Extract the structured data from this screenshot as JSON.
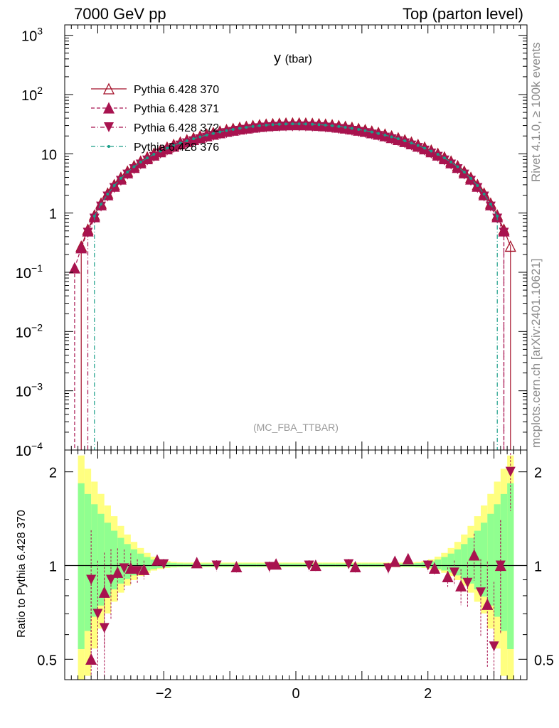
{
  "header": {
    "left": "7000 GeV pp",
    "right": "Top (parton level)"
  },
  "side_labels": {
    "rivet": "Rivet 4.1.0, ≥ 100k events",
    "mcplots": "mcplots.cern.ch [arXiv:2401.10621]"
  },
  "colors": {
    "s370": "#a5122a",
    "s371": "#a8134f",
    "s372": "#a8134f",
    "s376": "#1a9e88",
    "band_yellow": "#ffff80",
    "band_green": "#90ff90"
  },
  "chart_data": [
    {
      "type": "line",
      "panel": "main",
      "title": "y",
      "title_suffix": "(tbar)",
      "watermark": "(MC_FBA_TTBAR)",
      "xlabel": "",
      "ylabel": "",
      "xlim": [
        -3.5,
        3.5
      ],
      "ylim": [
        0.0001,
        1500
      ],
      "yscale": "log",
      "ytick_labels": [
        {
          "base": "10",
          "exp": "−4",
          "value": 0.0001
        },
        {
          "base": "10",
          "exp": "−3",
          "value": 0.001
        },
        {
          "base": "10",
          "exp": "−2",
          "value": 0.01
        },
        {
          "base": "10",
          "exp": "−1",
          "value": 0.1
        },
        {
          "base": "1",
          "exp": "",
          "value": 1
        },
        {
          "base": "10",
          "exp": "",
          "value": 10
        },
        {
          "base": "10",
          "exp": "2",
          "value": 100
        },
        {
          "base": "10",
          "exp": "3",
          "value": 1000
        }
      ],
      "legend_position": "top-left",
      "series": [
        {
          "name": "Pythia 6.428 370",
          "key": "s370",
          "marker": "open-triangle-up",
          "linestyle": "solid",
          "x_first": -3.25,
          "x_last": 3.25,
          "peak": 33
        },
        {
          "name": "Pythia 6.428 371",
          "key": "s371",
          "marker": "triangle-up",
          "linestyle": "dashed",
          "x_first": -3.35,
          "x_last": 3.15,
          "peak": 31
        },
        {
          "name": "Pythia 6.428 372",
          "key": "s372",
          "marker": "triangle-down",
          "linestyle": "dashdot",
          "x_first": -3.15,
          "x_last": 3.15,
          "peak": 29
        },
        {
          "name": "Pythia 6.428 376",
          "key": "s376",
          "marker": "dot",
          "linestyle": "dashdot",
          "x_first": -3.05,
          "x_last": 3.05,
          "peak": 32
        }
      ]
    },
    {
      "type": "line",
      "panel": "ratio",
      "ylabel": "Ratio to Pythia 6.428 370",
      "xlim": [
        -3.5,
        3.5
      ],
      "ylim": [
        0.43,
        2.35
      ],
      "yscale": "log",
      "xtick_labels": [
        {
          "label": "−2",
          "value": -2
        },
        {
          "label": "0",
          "value": 0
        },
        {
          "label": "2",
          "value": 2
        }
      ],
      "ytick_labels": [
        {
          "label": "0.5",
          "value": 0.5
        },
        {
          "label": "1",
          "value": 1
        },
        {
          "label": "2",
          "value": 2
        }
      ],
      "reference": 1,
      "series_ratio": [
        {
          "key": "s371",
          "x": [
            -3.1,
            -2.9,
            -2.7,
            -2.5,
            -2.3,
            -2.1,
            -1.5,
            -0.9,
            -0.3,
            0.3,
            0.9,
            1.5,
            1.7,
            2.1,
            2.3,
            2.5,
            2.7,
            2.9,
            3.1
          ],
          "y": [
            0.5,
            0.82,
            0.95,
            0.98,
            0.97,
            1.04,
            1.02,
            0.99,
            1.01,
            1.0,
            0.99,
            1.03,
            1.05,
            0.98,
            0.92,
            0.86,
            1.08,
            0.75,
            1.0
          ]
        },
        {
          "key": "s372",
          "x": [
            -3.1,
            -3.0,
            -2.9,
            -2.8,
            -2.6,
            -2.4,
            -2.0,
            -1.2,
            -0.4,
            0.2,
            0.8,
            1.4,
            2.0,
            2.4,
            2.6,
            2.8,
            3.0,
            3.1,
            3.25
          ],
          "y": [
            0.9,
            0.7,
            0.63,
            0.9,
            0.98,
            0.96,
            1.01,
            1.0,
            0.99,
            1.0,
            1.01,
            0.98,
            1.0,
            0.95,
            0.88,
            0.82,
            0.55,
            1.0,
            2.0
          ]
        }
      ]
    }
  ]
}
